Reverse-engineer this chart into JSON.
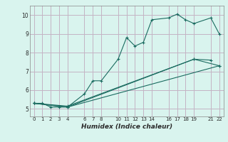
{
  "title": "",
  "xlabel": "Humidex (Indice chaleur)",
  "ylabel": "",
  "bg_color": "#d9f4ee",
  "grid_color": "#c4b4c4",
  "line_color": "#1a6b60",
  "ylim": [
    4.6,
    10.5
  ],
  "xlim": [
    -0.5,
    22.5
  ],
  "yticks": [
    5,
    6,
    7,
    8,
    9,
    10
  ],
  "xticks": [
    0,
    1,
    2,
    3,
    4,
    6,
    7,
    8,
    10,
    11,
    12,
    13,
    14,
    16,
    17,
    18,
    19,
    21,
    22
  ],
  "line1_x": [
    0,
    1,
    2,
    3,
    4,
    6,
    7,
    8,
    10,
    11,
    12,
    13,
    14,
    16,
    17,
    18,
    19,
    21,
    22
  ],
  "line1_y": [
    5.3,
    5.3,
    5.1,
    5.1,
    5.1,
    5.8,
    6.5,
    6.5,
    7.65,
    8.8,
    8.35,
    8.55,
    9.75,
    9.85,
    10.05,
    9.75,
    9.55,
    9.85,
    9.0
  ],
  "line2_x": [
    0,
    4,
    22
  ],
  "line2_y": [
    5.3,
    5.1,
    7.3
  ],
  "line3_x": [
    0,
    4,
    19,
    22
  ],
  "line3_y": [
    5.3,
    5.1,
    7.65,
    7.3
  ],
  "line4_x": [
    0,
    4,
    19,
    21
  ],
  "line4_y": [
    5.3,
    5.15,
    7.65,
    7.6
  ]
}
